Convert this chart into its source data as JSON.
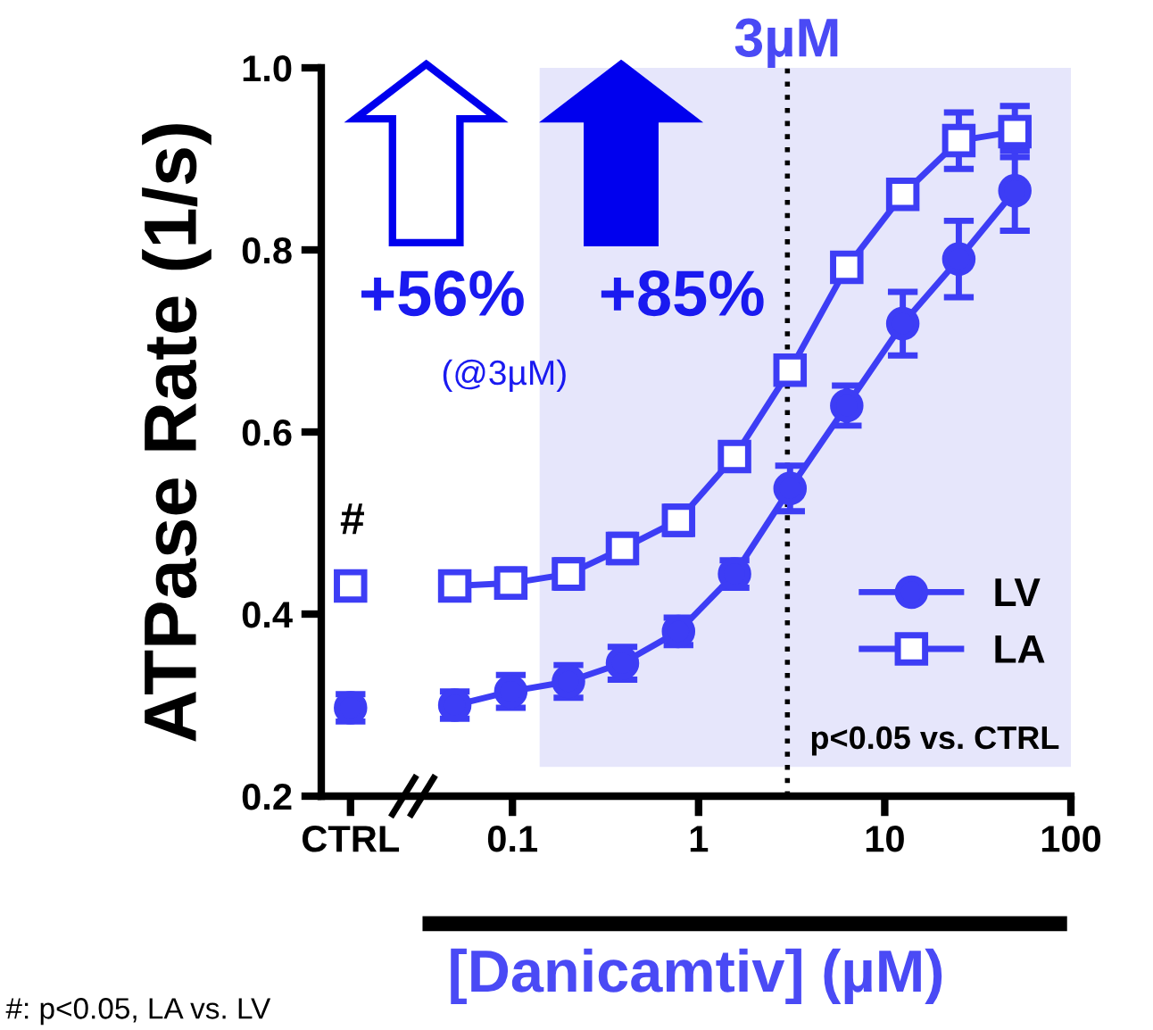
{
  "chart_data": {
    "type": "line",
    "xlabel": "[Danicamtiv] (µM)",
    "ylabel": "ATPase Rate (1/s)",
    "log": "x",
    "xlim": [
      0.0094,
      100
    ],
    "xticks": [
      {
        "value": 0.0135,
        "label": "CTRL"
      },
      0.1,
      1,
      10,
      100
    ],
    "ylim": [
      0.2,
      1.0
    ],
    "yticks": [
      0.2,
      0.4,
      0.6,
      0.8,
      {
        "value": 1,
        "label": "1.0"
      }
    ],
    "grid": false,
    "legend": "bottom right",
    "line_style": "solid",
    "series": [
      {
        "name": "LV",
        "color": "#3d3df5",
        "marker": "circle",
        "x": [
          0.0135,
          0.03,
          0.049,
          0.098,
          0.2,
          0.39,
          0.78,
          1.56,
          3.1,
          6.25,
          12.5,
          25,
          50
        ],
        "values": [
          0.297,
          null,
          0.3,
          0.315,
          0.326,
          0.346,
          0.381,
          0.444,
          0.538,
          0.629,
          0.719,
          0.79,
          0.865
        ],
        "errors": [
          0.015,
          null,
          0.015,
          0.018,
          0.018,
          0.018,
          0.015,
          0.015,
          0.025,
          0.022,
          0.035,
          0.042,
          0.044
        ]
      },
      {
        "name": "LA",
        "color": "#3d3df5",
        "marker": "square",
        "x": [
          0.0135,
          0.03,
          0.049,
          0.098,
          0.2,
          0.39,
          0.78,
          1.56,
          3.1,
          6.25,
          12.5,
          25,
          50
        ],
        "values": [
          0.431,
          null,
          0.431,
          0.434,
          0.444,
          0.472,
          0.503,
          0.573,
          0.668,
          0.781,
          0.861,
          0.92,
          0.93
        ],
        "errors": [
          0.012,
          null,
          0.012,
          0.015,
          0.015,
          0.015,
          0.015,
          0.012,
          0.012,
          0.01,
          0.01,
          0.031,
          0.028
        ]
      }
    ],
    "ref_lines": [
      {
        "axis": "x",
        "value": 3,
        "label": "3µM",
        "color": "#000000",
        "line_style": "dotted"
      }
    ],
    "bands": [
      {
        "axis": "x",
        "from": 0.14,
        "to": 100,
        "color": "#e6e6fb"
      }
    ],
    "annotations": [
      "+56%",
      "+85%",
      "(@3µM)",
      "#",
      "p<0.05 vs. CTRL",
      "#: p<0.05, LA vs. LV"
    ]
  }
}
